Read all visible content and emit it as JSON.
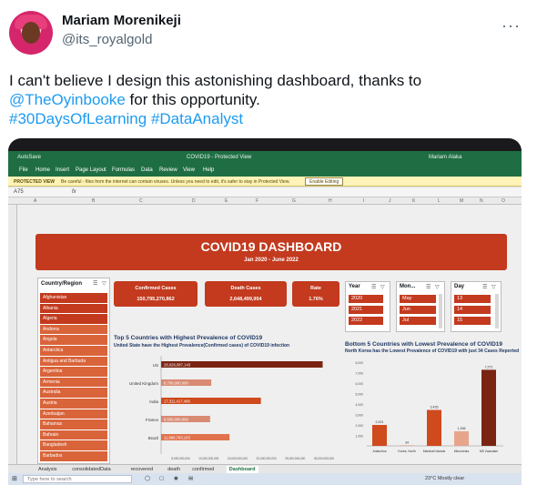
{
  "tweet": {
    "display_name": "Mariam Morenikeji",
    "handle": "@its_royalgold",
    "more": "···",
    "text_line1": "I can't believe I design this astonishing dashboard, thanks to",
    "mention": "@TheOyinbooke",
    "text_line2_rest": " for this opportunity.",
    "hashtag1": "#30DaysOfLearning",
    "hashtag2": "#DataAnalyst"
  },
  "excel": {
    "autosave": "AutoSave",
    "file_title": "COVID19 - Protected View",
    "user": "Mariam Alaka",
    "menu": [
      "File",
      "Home",
      "Insert",
      "Page Layout",
      "Formulas",
      "Data",
      "Review",
      "View",
      "Help"
    ],
    "protected_label": "PROTECTED VIEW",
    "protected_msg": "Be careful - files from the internet can contain viruses. Unless you need to edit, it's safer to stay in Protected View.",
    "enable_editing": "Enable Editing",
    "cell_ref": "A75",
    "fx": "fx",
    "columns": [
      "A",
      "B",
      "C",
      "D",
      "E",
      "F",
      "G",
      "H",
      "I",
      "J",
      "K",
      "L",
      "M",
      "N",
      "O"
    ],
    "sheet_tabs": [
      "Analysis",
      "consolidatedData",
      "recovered",
      "death",
      "confirmed",
      "Dashboard"
    ],
    "taskbar_search": "Type here to search",
    "weather": "23°C  Mostly clear"
  },
  "dashboard": {
    "title": "COVID19 DASHBOARD",
    "subtitle": "Jan 2020 - June 2022",
    "country_header": "Country/Region",
    "countries": [
      "Afghanistan",
      "Albania",
      "Algeria",
      "Andorra",
      "Angola",
      "Antarctica",
      "Antigua and Barbuda",
      "Argentina",
      "Armenia",
      "Australia",
      "Austria",
      "Azerbaijan",
      "Bahamas",
      "Bahrain",
      "Bangladesh",
      "Barbados"
    ],
    "cards": {
      "confirmed_label": "Confirmed Cases",
      "confirmed_value": "150,795,270,862",
      "death_label": "Death Cases",
      "death_value": "2,648,499,954",
      "rate_label": "Rate",
      "rate_value": "1.76%"
    },
    "slicer_year": {
      "header": "Year",
      "items": [
        "2020",
        "2021",
        "2022"
      ]
    },
    "slicer_month": {
      "header": "Mon...",
      "items": [
        "May",
        "Jun",
        "Jul"
      ]
    },
    "slicer_day": {
      "header": "Day",
      "items": [
        "13",
        "14",
        "15"
      ]
    },
    "top5_title": "Top 5 Countries with Highest Prevalence of COVID19",
    "top5_subtitle": "United State have the Highest Prevalence(Confirmed cases) of COVID19 infection",
    "bottom5_title": "Bottom 5 Countries with Lowest  Prevalence of COVID19",
    "bottom5_subtitle": "North Korea has the Lowest Prevalence of COVID19 with just 34 Cases Reported"
  },
  "chart_data": [
    {
      "type": "bar",
      "orientation": "horizontal",
      "title": "Top 5 Countries with Highest Prevalence of COVID19",
      "subtitle": "United State have the Highest Prevalence(Confirmed cases) of COVID19 infection",
      "categories": [
        "US",
        "United Kingdom",
        "India",
        "France",
        "Brazil"
      ],
      "values": [
        28026087143,
        8700000000,
        17311417486,
        8500000000,
        11869793103
      ],
      "data_labels": [
        "28,026,087,143",
        "8,700,000,000",
        "17,311,417,486",
        "8,500,000,000",
        "11,869,793,103"
      ],
      "colors": [
        "#7a2512",
        "#d98a72",
        "#cf4a1c",
        "#d98a72",
        "#e0724d"
      ],
      "xlim": [
        0,
        30000000000
      ],
      "x_ticks": [
        "5,000,000,000",
        "10,000,000,000",
        "15,000,000,000",
        "20,000,000,000",
        "25,000,000,000",
        "30,000,000,000"
      ],
      "grid": false
    },
    {
      "type": "bar",
      "orientation": "vertical",
      "title": "Bottom 5 Countries with Lowest  Prevalence of COVID19",
      "subtitle": "North Korea has the Lowest Prevalence of COVID19 with just 34 Cases Reported",
      "categories": [
        "Antarctica",
        "Korea, North",
        "Marshall Islands",
        "Micronesia",
        "MS Zaandam"
      ],
      "values": [
        2001,
        34,
        3435,
        1396,
        7271
      ],
      "data_labels": [
        "2,001",
        "34",
        "3,435",
        "1,396",
        "7,271"
      ],
      "colors": [
        "#cf4a1c",
        "#e7a58c",
        "#cf4a1c",
        "#e7a58c",
        "#7a2512"
      ],
      "ylim": [
        0,
        8000
      ],
      "y_ticks": [
        "1,000",
        "2,000",
        "3,000",
        "4,000",
        "5,000",
        "6,000",
        "7,000",
        "8,000"
      ],
      "grid": false
    }
  ]
}
